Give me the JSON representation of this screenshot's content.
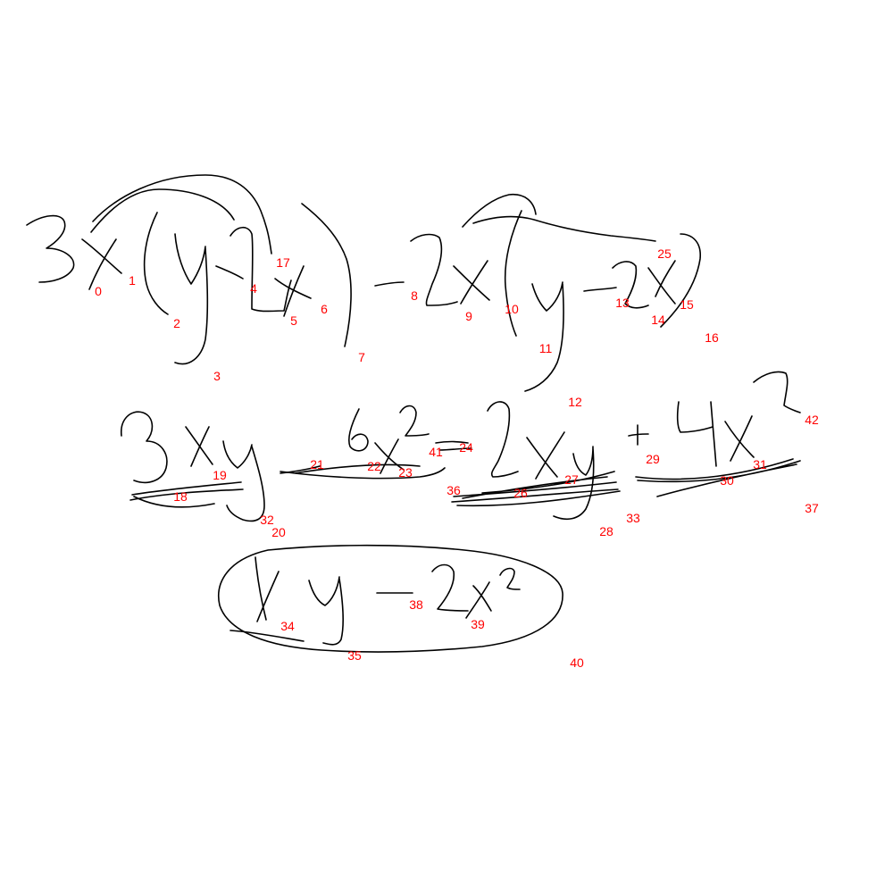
{
  "canvas": {
    "background": "#ffffff",
    "ink_color": "#000000",
    "label_color": "#ff0000"
  },
  "stroke_labels": [
    "0",
    "1",
    "2",
    "3",
    "4",
    "5",
    "6",
    "7",
    "8",
    "9",
    "10",
    "11",
    "12",
    "13",
    "14",
    "15",
    "16",
    "17",
    "18",
    "19",
    "20",
    "21",
    "22",
    "23",
    "24",
    "25",
    "26",
    "27",
    "28",
    "29",
    "30",
    "31",
    "32",
    "33",
    "34",
    "35",
    "36",
    "37",
    "38",
    "39",
    "40",
    "41",
    "42"
  ]
}
